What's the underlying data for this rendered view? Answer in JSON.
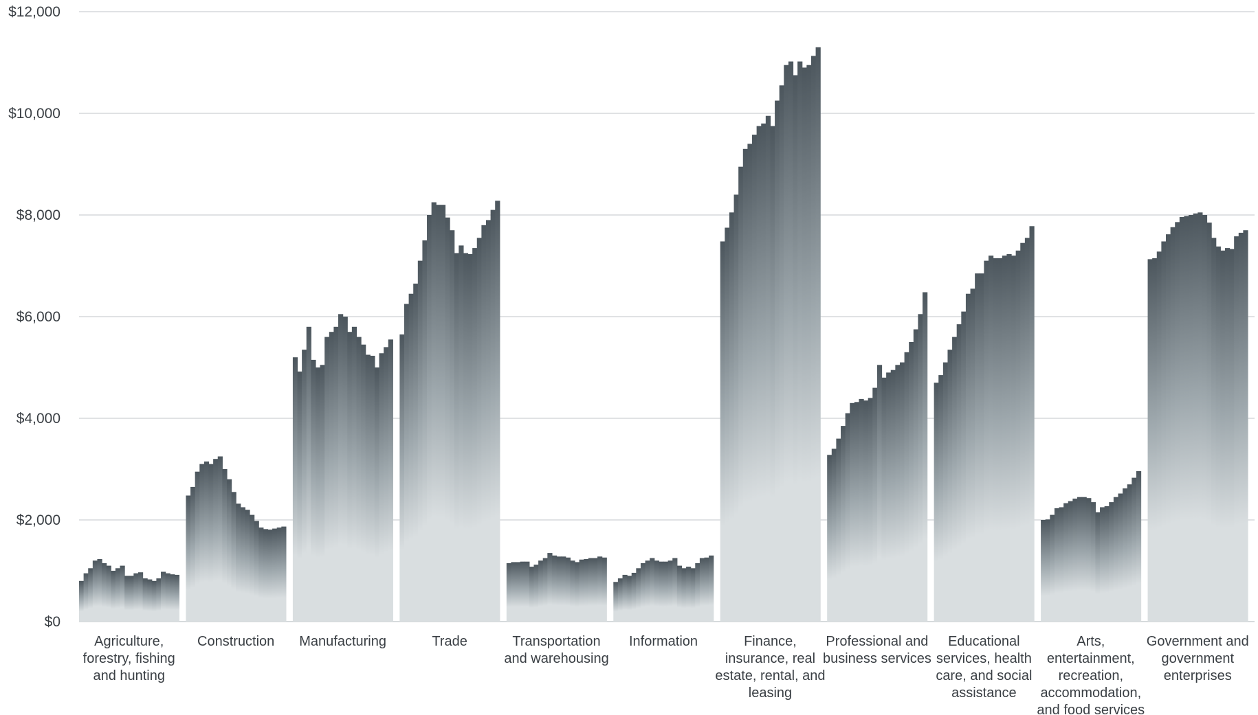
{
  "chart_data": {
    "type": "bar",
    "title": "",
    "xlabel": "",
    "ylabel": "",
    "ylim": [
      0,
      12000
    ],
    "yticks": [
      0,
      2000,
      4000,
      6000,
      8000,
      10000,
      12000
    ],
    "ytick_labels": [
      "$0",
      "$2,000",
      "$4,000",
      "$6,000",
      "$8,000",
      "$10,000",
      "$12,000"
    ],
    "grid": true,
    "legend": "none",
    "colors": {
      "top": "#4c565d",
      "bottom": "#d9dee0"
    },
    "categories": [
      {
        "label_lines": [
          "Agriculture,",
          "forestry, fishing",
          "and hunting"
        ],
        "values": [
          800,
          950,
          1050,
          1200,
          1230,
          1150,
          1100,
          1000,
          1050,
          1100,
          900,
          900,
          950,
          970,
          850,
          830,
          800,
          850,
          980,
          950,
          930,
          920
        ]
      },
      {
        "label_lines": [
          "Construction"
        ],
        "values": [
          2480,
          2650,
          2950,
          3100,
          3150,
          3100,
          3200,
          3250,
          3000,
          2800,
          2550,
          2320,
          2250,
          2200,
          2100,
          1980,
          1850,
          1820,
          1810,
          1830,
          1850,
          1870
        ]
      },
      {
        "label_lines": [
          "Manufacturing"
        ],
        "values": [
          5200,
          4920,
          5350,
          5800,
          5150,
          5000,
          5050,
          5600,
          5700,
          5800,
          6050,
          6000,
          5700,
          5800,
          5600,
          5450,
          5250,
          5230,
          5000,
          5280,
          5400,
          5550
        ]
      },
      {
        "label_lines": [
          "Trade"
        ],
        "values": [
          5650,
          6250,
          6450,
          6650,
          7100,
          7500,
          8000,
          8250,
          8200,
          8200,
          7950,
          7700,
          7250,
          7400,
          7250,
          7230,
          7350,
          7550,
          7800,
          7900,
          8100,
          8280
        ]
      },
      {
        "label_lines": [
          "Transportation",
          "and warehousing"
        ],
        "values": [
          1150,
          1170,
          1170,
          1180,
          1180,
          1080,
          1120,
          1200,
          1250,
          1350,
          1300,
          1280,
          1280,
          1260,
          1200,
          1170,
          1220,
          1230,
          1250,
          1250,
          1280,
          1260
        ]
      },
      {
        "label_lines": [
          "Information"
        ],
        "values": [
          780,
          850,
          920,
          900,
          960,
          1050,
          1150,
          1200,
          1250,
          1200,
          1180,
          1180,
          1200,
          1250,
          1100,
          1050,
          1080,
          1050,
          1150,
          1250,
          1260,
          1300
        ]
      },
      {
        "label_lines": [
          "Finance,",
          "insurance, real",
          "estate, rental, and",
          "leasing"
        ],
        "values": [
          7480,
          7750,
          8050,
          8400,
          8950,
          9300,
          9400,
          9580,
          9750,
          9800,
          9950,
          9750,
          10250,
          10550,
          10950,
          11020,
          10750,
          11020,
          10900,
          10950,
          11130,
          11300
        ]
      },
      {
        "label_lines": [
          "Professional and",
          "business services"
        ],
        "values": [
          3280,
          3400,
          3600,
          3850,
          4100,
          4300,
          4320,
          4380,
          4350,
          4400,
          4600,
          5050,
          4800,
          4900,
          4950,
          5050,
          5100,
          5300,
          5500,
          5750,
          6050,
          6480
        ]
      },
      {
        "label_lines": [
          "Educational",
          "services, health",
          "care, and social",
          "assistance"
        ],
        "values": [
          4700,
          4850,
          5100,
          5350,
          5600,
          5850,
          6100,
          6450,
          6550,
          6850,
          6850,
          7100,
          7200,
          7150,
          7150,
          7200,
          7230,
          7200,
          7300,
          7450,
          7550,
          7780
        ]
      },
      {
        "label_lines": [
          "Arts,",
          "entertainment,",
          "recreation,",
          "accommodation,",
          "and food services"
        ],
        "values": [
          2000,
          2010,
          2100,
          2230,
          2250,
          2330,
          2370,
          2420,
          2450,
          2450,
          2430,
          2350,
          2150,
          2250,
          2270,
          2350,
          2450,
          2520,
          2620,
          2700,
          2830,
          2960
        ]
      },
      {
        "label_lines": [
          "Government and",
          "government",
          "enterprises"
        ],
        "values": [
          7130,
          7150,
          7280,
          7480,
          7620,
          7760,
          7860,
          7960,
          7980,
          8000,
          8030,
          8050,
          8000,
          7850,
          7550,
          7380,
          7300,
          7350,
          7330,
          7580,
          7650,
          7700
        ]
      }
    ]
  }
}
